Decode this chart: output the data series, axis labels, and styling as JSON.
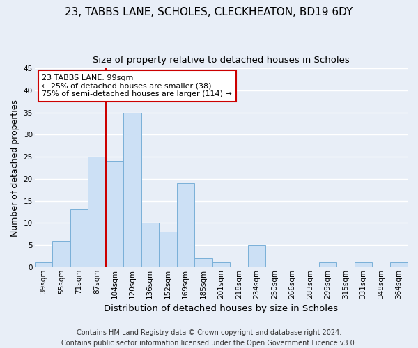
{
  "title": "23, TABBS LANE, SCHOLES, CLECKHEATON, BD19 6DY",
  "subtitle": "Size of property relative to detached houses in Scholes",
  "xlabel": "Distribution of detached houses by size in Scholes",
  "ylabel": "Number of detached properties",
  "bin_labels": [
    "39sqm",
    "55sqm",
    "71sqm",
    "87sqm",
    "104sqm",
    "120sqm",
    "136sqm",
    "152sqm",
    "169sqm",
    "185sqm",
    "201sqm",
    "218sqm",
    "234sqm",
    "250sqm",
    "266sqm",
    "283sqm",
    "299sqm",
    "315sqm",
    "331sqm",
    "348sqm",
    "364sqm"
  ],
  "bar_values": [
    1,
    6,
    13,
    25,
    24,
    35,
    10,
    8,
    19,
    2,
    1,
    0,
    5,
    0,
    0,
    0,
    1,
    0,
    1,
    0,
    1
  ],
  "bar_color": "#cce0f5",
  "bar_edge_color": "#7ab0d8",
  "bg_color": "#e8eef7",
  "grid_color": "#ffffff",
  "vline_x_index": 4,
  "vline_color": "#cc0000",
  "annotation_text": "23 TABBS LANE: 99sqm\n← 25% of detached houses are smaller (38)\n75% of semi-detached houses are larger (114) →",
  "annotation_box_color": "#ffffff",
  "annotation_box_edge_color": "#cc0000",
  "footer_text": "Contains HM Land Registry data © Crown copyright and database right 2024.\nContains public sector information licensed under the Open Government Licence v3.0.",
  "ylim": [
    0,
    45
  ],
  "title_fontsize": 11,
  "subtitle_fontsize": 9.5,
  "xlabel_fontsize": 9.5,
  "ylabel_fontsize": 9,
  "tick_fontsize": 7.5,
  "annot_fontsize": 8,
  "footer_fontsize": 7
}
